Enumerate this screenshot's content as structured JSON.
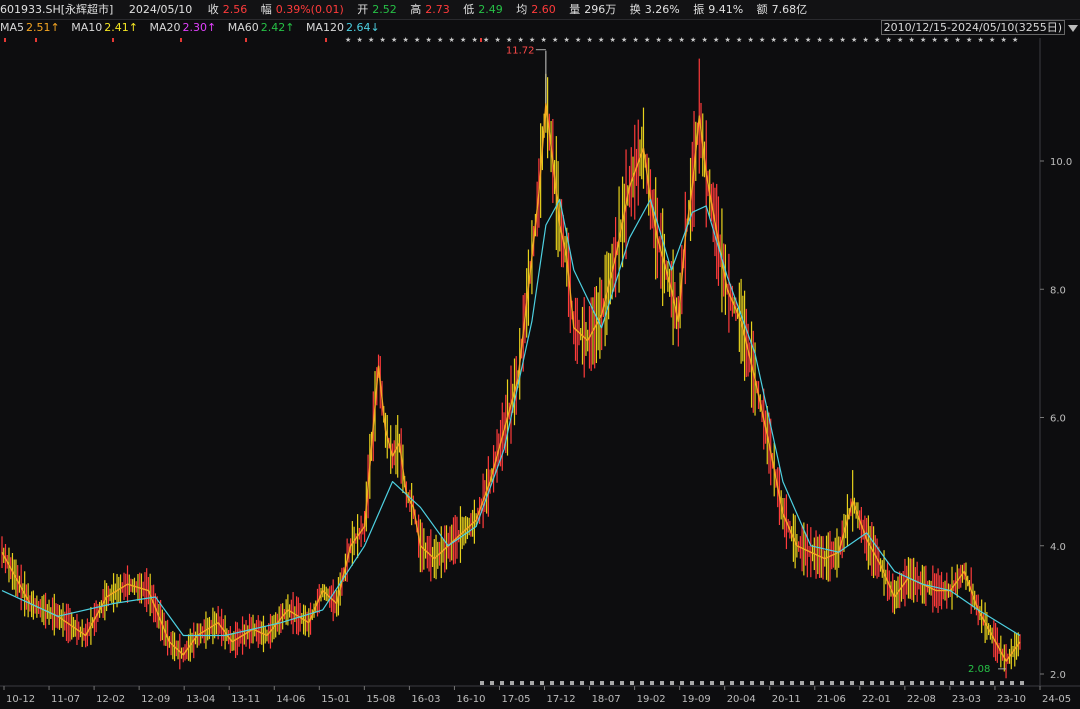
{
  "quote": {
    "code": "601933.SH[永辉超市]",
    "date": "2024/05/10",
    "close_label": "收",
    "close": "2.56",
    "amp_label": "幅",
    "amp": "0.39%(0.01)",
    "open_label": "开",
    "open": "2.52",
    "high_label": "高",
    "high": "2.73",
    "low_label": "低",
    "low": "2.49",
    "avg_label": "均",
    "avg": "2.60",
    "vol_label": "量",
    "vol": "296万",
    "turn_label": "换",
    "turn": "3.26%",
    "swing_label": "振",
    "swing": "9.41%",
    "amt_label": "额",
    "amt": "7.68亿"
  },
  "ma": [
    {
      "label": "MA5",
      "value": "2.51↑",
      "color": "#f5a623"
    },
    {
      "label": "MA10",
      "value": "2.41↑",
      "color": "#f5e623"
    },
    {
      "label": "MA20",
      "value": "2.30↑",
      "color": "#e040fb"
    },
    {
      "label": "MA60",
      "value": "2.42↑",
      "color": "#26c046"
    },
    {
      "label": "MA120",
      "value": "2.64↓",
      "color": "#4dd0e1"
    }
  ],
  "range_text": "2010/12/15-2024/05/10(3255日)",
  "chart_data": {
    "type": "line",
    "y_axis_ticks": [
      "10.0",
      "8.0",
      "6.0",
      "4.0",
      "2.0"
    ],
    "x_axis_ticks": [
      "10-12",
      "11-07",
      "12-02",
      "12-09",
      "13-04",
      "13-11",
      "14-06",
      "15-01",
      "15-08",
      "16-03",
      "16-10",
      "17-05",
      "17-12",
      "18-07",
      "19-02",
      "19-09",
      "20-04",
      "20-11",
      "21-06",
      "22-01",
      "22-08",
      "23-03",
      "23-10",
      "24-05"
    ],
    "ylim": [
      2.0,
      12.0
    ],
    "max_label": "11.72",
    "min_label": "2.08",
    "series": [
      {
        "values": [
          [
            0,
            3.9
          ],
          [
            4,
            3.1
          ],
          [
            8,
            2.9
          ],
          [
            12,
            2.6
          ],
          [
            15,
            3.2
          ],
          [
            18,
            3.4
          ],
          [
            21,
            3.3
          ],
          [
            24,
            2.5
          ],
          [
            26,
            2.3
          ],
          [
            28,
            2.6
          ],
          [
            31,
            2.8
          ],
          [
            33,
            2.5
          ],
          [
            36,
            2.7
          ],
          [
            38,
            2.6
          ],
          [
            41,
            3.0
          ],
          [
            44,
            2.8
          ],
          [
            46,
            3.3
          ],
          [
            48,
            3.1
          ],
          [
            50,
            4.0
          ],
          [
            52,
            4.3
          ],
          [
            54,
            6.8
          ],
          [
            55,
            5.8
          ],
          [
            56,
            5.4
          ],
          [
            57,
            5.6
          ],
          [
            58,
            4.8
          ],
          [
            59,
            4.6
          ],
          [
            60,
            4.0
          ],
          [
            62,
            3.8
          ],
          [
            64,
            4.0
          ],
          [
            66,
            4.2
          ],
          [
            68,
            4.4
          ],
          [
            70,
            5.0
          ],
          [
            72,
            5.8
          ],
          [
            74,
            6.6
          ],
          [
            76,
            8.5
          ],
          [
            77,
            9.5
          ],
          [
            78,
            10.9
          ],
          [
            79,
            10.0
          ],
          [
            80,
            9.0
          ],
          [
            81,
            8.5
          ],
          [
            82,
            7.4
          ],
          [
            84,
            7.2
          ],
          [
            86,
            7.6
          ],
          [
            88,
            8.5
          ],
          [
            90,
            9.6
          ],
          [
            92,
            10.2
          ],
          [
            93,
            9.4
          ],
          [
            94,
            8.8
          ],
          [
            96,
            8.0
          ],
          [
            97,
            7.5
          ],
          [
            98,
            8.8
          ],
          [
            99,
            9.6
          ],
          [
            100,
            10.7
          ],
          [
            101,
            9.8
          ],
          [
            102,
            9.2
          ],
          [
            104,
            8.0
          ],
          [
            106,
            7.5
          ],
          [
            108,
            6.6
          ],
          [
            110,
            5.6
          ],
          [
            112,
            4.5
          ],
          [
            114,
            4.0
          ],
          [
            116,
            3.9
          ],
          [
            118,
            3.8
          ],
          [
            120,
            3.9
          ],
          [
            122,
            4.7
          ],
          [
            124,
            4.1
          ],
          [
            126,
            3.7
          ],
          [
            128,
            3.2
          ],
          [
            130,
            3.5
          ],
          [
            132,
            3.4
          ],
          [
            134,
            3.3
          ],
          [
            136,
            3.3
          ],
          [
            138,
            3.6
          ],
          [
            140,
            3.0
          ],
          [
            142,
            2.6
          ],
          [
            144,
            2.2
          ],
          [
            146,
            2.5
          ]
        ],
        "color": "#f5a623"
      },
      {
        "values": [
          [
            0,
            3.3
          ],
          [
            8,
            2.9
          ],
          [
            16,
            3.1
          ],
          [
            22,
            3.2
          ],
          [
            26,
            2.6
          ],
          [
            32,
            2.6
          ],
          [
            40,
            2.8
          ],
          [
            46,
            3.0
          ],
          [
            52,
            4.0
          ],
          [
            56,
            5.0
          ],
          [
            60,
            4.6
          ],
          [
            64,
            4.0
          ],
          [
            68,
            4.3
          ],
          [
            72,
            5.5
          ],
          [
            76,
            7.5
          ],
          [
            78,
            9.0
          ],
          [
            80,
            9.4
          ],
          [
            82,
            8.3
          ],
          [
            86,
            7.4
          ],
          [
            90,
            8.8
          ],
          [
            93,
            9.4
          ],
          [
            96,
            8.3
          ],
          [
            99,
            9.2
          ],
          [
            101,
            9.3
          ],
          [
            104,
            8.2
          ],
          [
            108,
            7.0
          ],
          [
            112,
            5.0
          ],
          [
            116,
            4.0
          ],
          [
            120,
            3.9
          ],
          [
            124,
            4.2
          ],
          [
            128,
            3.6
          ],
          [
            132,
            3.4
          ],
          [
            136,
            3.3
          ],
          [
            140,
            3.0
          ],
          [
            146,
            2.6
          ]
        ],
        "color": "#4dd0e1"
      }
    ]
  }
}
